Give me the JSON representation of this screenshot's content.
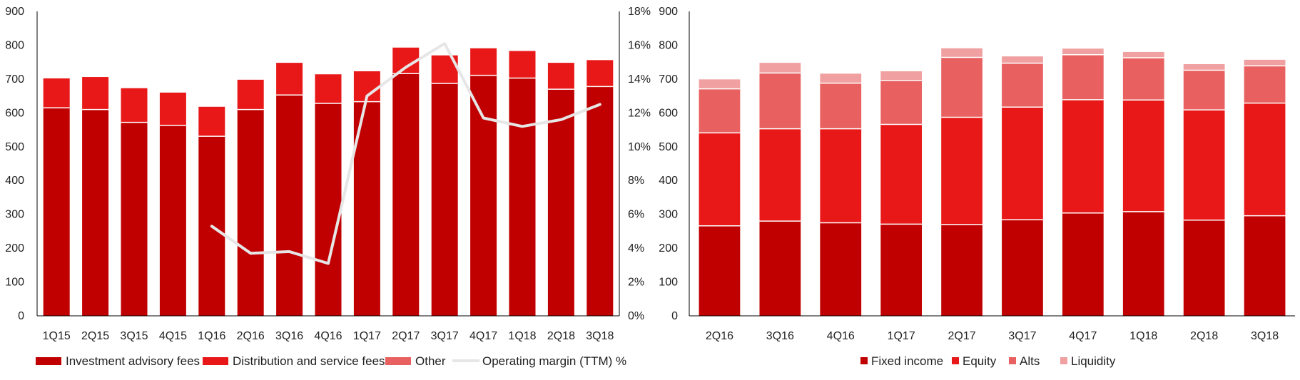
{
  "colors": {
    "investment": "#C00000",
    "distribution": "#E81818",
    "other": "#E86060",
    "margin_line": "#E6E6E6",
    "fixed_income": "#C00000",
    "equity": "#E81818",
    "alts": "#E86060",
    "liquidity": "#F0A0A0",
    "axis": "#000000"
  },
  "chart_data": [
    {
      "type": "bar",
      "stacked": true,
      "categories": [
        "1Q15",
        "2Q15",
        "3Q15",
        "4Q15",
        "1Q16",
        "2Q16",
        "3Q16",
        "4Q16",
        "1Q17",
        "2Q17",
        "3Q17",
        "4Q17",
        "1Q18",
        "2Q18",
        "3Q18"
      ],
      "series": [
        {
          "name": "Investment advisory fees",
          "values": [
            615,
            610,
            572,
            563,
            531,
            610,
            653,
            628,
            633,
            716,
            687,
            711,
            703,
            670,
            678
          ]
        },
        {
          "name": "Distribution and service fees",
          "values": [
            87,
            96,
            101,
            97,
            87,
            88,
            95,
            86,
            90,
            77,
            83,
            80,
            80,
            78,
            78
          ]
        },
        {
          "name": "Other",
          "values": [
            0,
            0,
            0,
            0,
            0,
            0,
            0,
            0,
            0,
            0,
            0,
            0,
            0,
            0,
            0
          ]
        }
      ],
      "line_series": {
        "name": "Operating margin (TTM) %",
        "axis": "right",
        "start_index": 4,
        "values": [
          5.3,
          3.7,
          3.8,
          3.1,
          13.0,
          14.7,
          16.1,
          11.7,
          11.2,
          11.6,
          12.5
        ]
      },
      "ylim": [
        0,
        900
      ],
      "yticks": [
        "0",
        "100",
        "200",
        "300",
        "400",
        "500",
        "600",
        "700",
        "800",
        "900"
      ],
      "y2lim": [
        0,
        18
      ],
      "y2ticks": [
        "0%",
        "2%",
        "4%",
        "6%",
        "8%",
        "10%",
        "12%",
        "14%",
        "16%",
        "18%"
      ],
      "legend_position": "bottom"
    },
    {
      "type": "bar",
      "stacked": true,
      "categories": [
        "2Q16",
        "3Q16",
        "4Q16",
        "1Q17",
        "2Q17",
        "3Q17",
        "4Q17",
        "1Q18",
        "2Q18",
        "3Q18"
      ],
      "series": [
        {
          "name": "Fixed income",
          "values": [
            266,
            280,
            275,
            271,
            270,
            284,
            304,
            308,
            283,
            296
          ]
        },
        {
          "name": "Equity",
          "values": [
            275,
            273,
            278,
            295,
            317,
            333,
            335,
            330,
            326,
            333
          ]
        },
        {
          "name": "Alts",
          "values": [
            130,
            165,
            135,
            130,
            177,
            130,
            133,
            125,
            117,
            110
          ]
        },
        {
          "name": "Liquidity",
          "values": [
            28,
            30,
            28,
            27,
            27,
            20,
            18,
            17,
            18,
            18
          ]
        }
      ],
      "ylim": [
        0,
        900
      ],
      "yticks": [
        "0",
        "100",
        "200",
        "300",
        "400",
        "500",
        "600",
        "700",
        "800",
        "900"
      ],
      "legend_position": "bottom"
    }
  ]
}
